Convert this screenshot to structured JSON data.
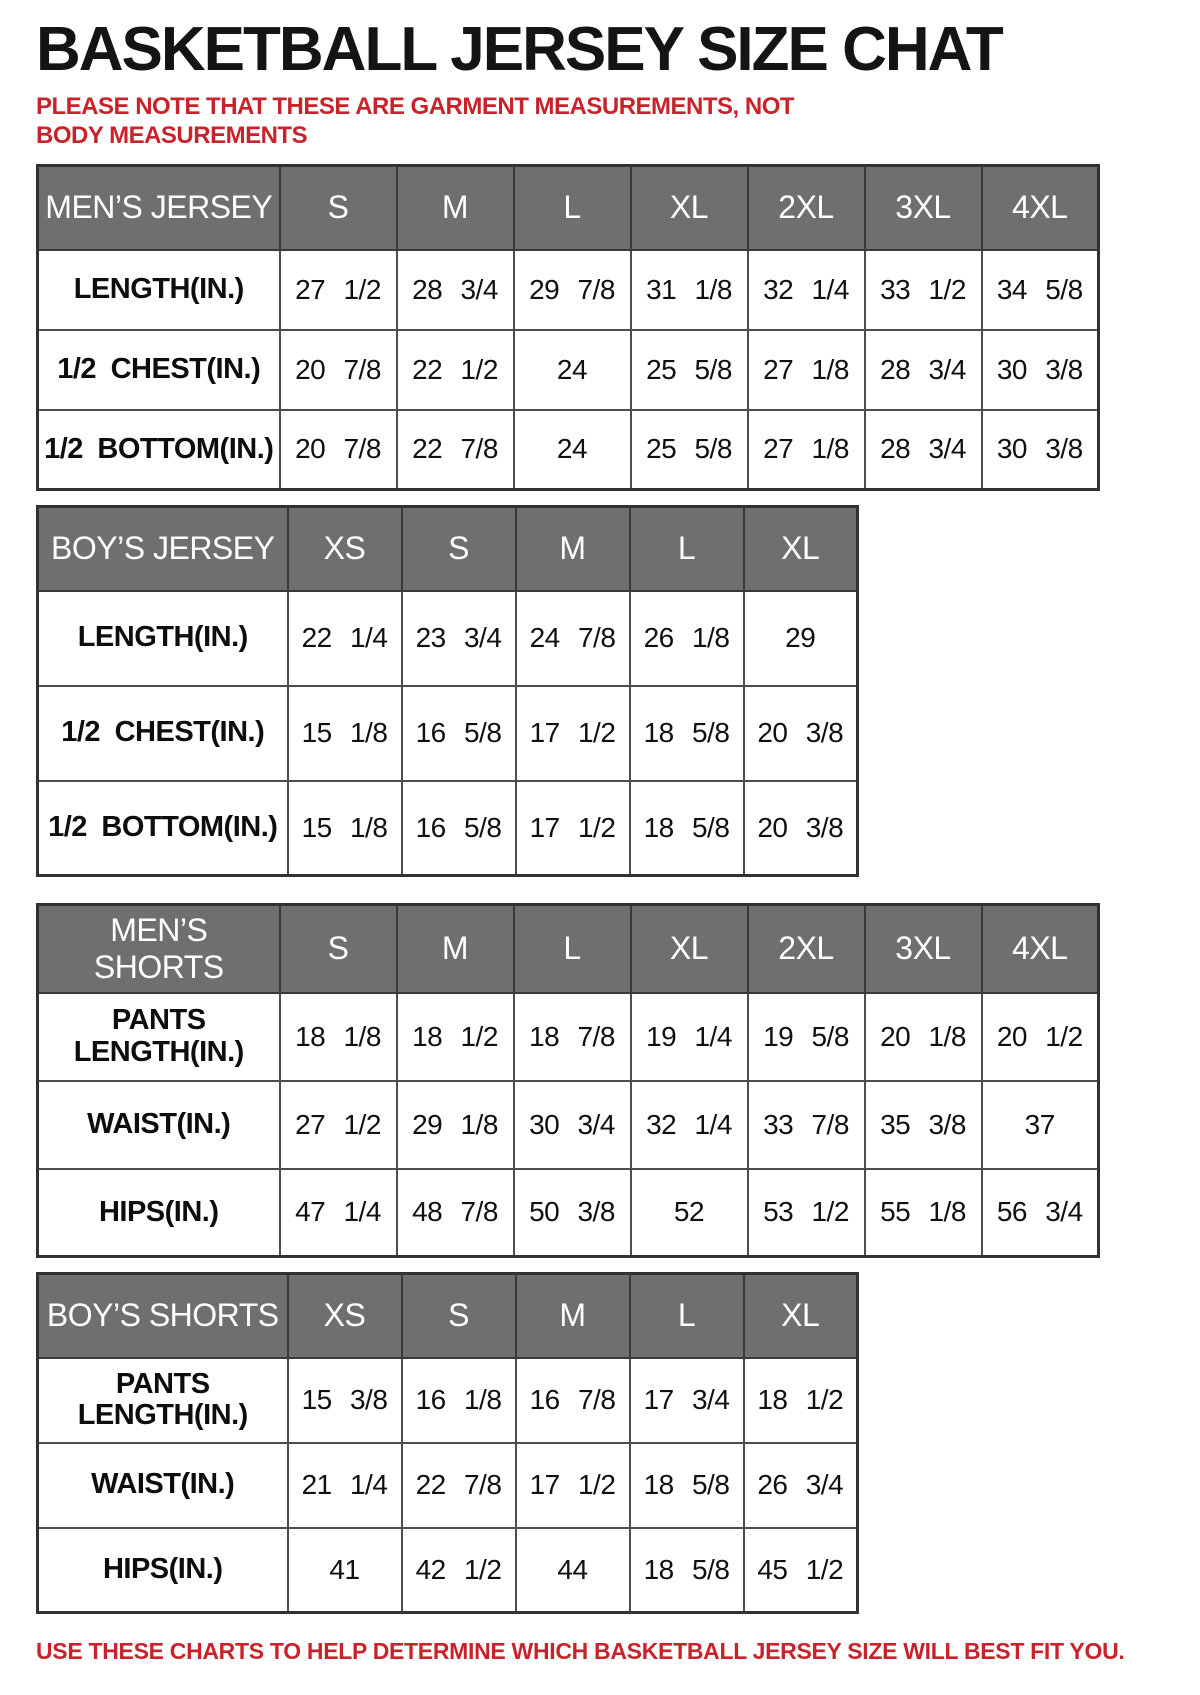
{
  "page": {
    "title": "BASKETBALL JERSEY SIZE CHAT",
    "note_top": "PLEASE NOTE THAT THESE ARE GARMENT MEASUREMENTS, NOT BODY MEASUREMENTS",
    "note_bottom": "USE THESE CHARTS TO HELP DETERMINE WHICH BASKETBALL JERSEY SIZE WILL BEST FIT YOU."
  },
  "colors": {
    "note_red": "#c8232a",
    "header_bg": "#706e6f",
    "header_text": "#ffffff",
    "cell_border": "#4e4c4d",
    "title_black": "#141414"
  },
  "tables": [
    {
      "id": "mens-jersey",
      "wide": true,
      "header": [
        "MEN’S JERSEY",
        "S",
        "M",
        "L",
        "XL",
        "2XL",
        "3XL",
        "4XL"
      ],
      "rows": [
        [
          "LENGTH(IN.)",
          "27 1/2",
          "28 3/4",
          "29 7/8",
          "31 1/8",
          "32 1/4",
          "33 1/2",
          "34 5/8"
        ],
        [
          "1/2 CHEST(IN.)",
          "20 7/8",
          "22 1/2",
          "24",
          "25 5/8",
          "27 1/8",
          "28 3/4",
          "30 3/8"
        ],
        [
          "1/2 BOTTOM(IN.)",
          "20 7/8",
          "22 7/8",
          "24",
          "25 5/8",
          "27 1/8",
          "28 3/4",
          "30 3/8"
        ]
      ]
    },
    {
      "id": "boys-jersey",
      "wide": false,
      "header": [
        "BOY’S JERSEY",
        "XS",
        "S",
        "M",
        "L",
        "XL"
      ],
      "rows": [
        [
          "LENGTH(IN.)",
          "22 1/4",
          "23 3/4",
          "24 7/8",
          "26 1/8",
          "29"
        ],
        [
          "1/2 CHEST(IN.)",
          "15 1/8",
          "16 5/8",
          "17 1/2",
          "18 5/8",
          "20 3/8"
        ],
        [
          "1/2 BOTTOM(IN.)",
          "15 1/8",
          "16 5/8",
          "17 1/2",
          "18 5/8",
          "20 3/8"
        ]
      ]
    },
    {
      "id": "mens-shorts",
      "wide": true,
      "header": [
        "MEN’S SHORTS",
        "S",
        "M",
        "L",
        "XL",
        "2XL",
        "3XL",
        "4XL"
      ],
      "rows": [
        [
          "PANTS LENGTH(IN.)",
          "18 1/8",
          "18 1/2",
          "18 7/8",
          "19 1/4",
          "19 5/8",
          "20 1/8",
          "20 1/2"
        ],
        [
          "WAIST(IN.)",
          "27 1/2",
          "29 1/8",
          "30 3/4",
          "32 1/4",
          "33 7/8",
          "35 3/8",
          "37"
        ],
        [
          "HIPS(IN.)",
          "47 1/4",
          "48 7/8",
          "50 3/8",
          "52",
          "53 1/2",
          "55 1/8",
          "56 3/4"
        ]
      ]
    },
    {
      "id": "boys-shorts",
      "wide": false,
      "header": [
        "BOY’S SHORTS",
        "XS",
        "S",
        "M",
        "L",
        "XL"
      ],
      "rows": [
        [
          "PANTS LENGTH(IN.)",
          "15 3/8",
          "16 1/8",
          "16 7/8",
          "17 3/4",
          "18 1/2"
        ],
        [
          "WAIST(IN.)",
          "21 1/4",
          "22 7/8",
          "17 1/2",
          "18 5/8",
          "26 3/4"
        ],
        [
          "HIPS(IN.)",
          "41",
          "42 1/2",
          "44",
          "18 5/8",
          "45 1/2"
        ]
      ]
    }
  ]
}
